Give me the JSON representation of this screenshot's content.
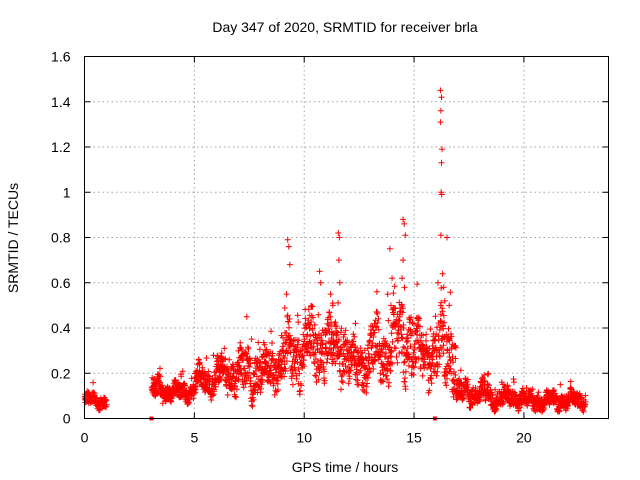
{
  "chart_data": {
    "type": "scatter",
    "title": "Day 347 of 2020, SRMTID for receiver brla",
    "xlabel": "GPS time / hours",
    "ylabel": "SRMTID / TECUs",
    "xlim": [
      0,
      23.85
    ],
    "ylim": [
      0,
      1.6
    ],
    "xticks": [
      0,
      5,
      10,
      15,
      20
    ],
    "yticks": [
      0,
      0.2,
      0.4,
      0.6,
      0.8,
      1,
      1.2,
      1.4,
      1.6
    ],
    "xtick_labels": [
      "0",
      "5",
      "10",
      "15",
      "20"
    ],
    "ytick_labels": [
      "0",
      "0.2",
      "0.4",
      "0.6",
      "0.8",
      "1",
      "1.2",
      "1.4",
      "1.6"
    ],
    "grid": true,
    "marker": "+",
    "color": "#ff0000",
    "zero_marks_x": [
      3.05,
      15.95
    ],
    "profile": [
      {
        "t_start": 0.0,
        "t_end": 1.0,
        "base": 0.08,
        "spread": 0.03
      },
      {
        "t_start": 3.05,
        "t_end": 3.6,
        "base": 0.13,
        "spread": 0.05
      },
      {
        "t_start": 3.6,
        "t_end": 5.0,
        "base": 0.12,
        "spread": 0.04
      },
      {
        "t_start": 5.0,
        "t_end": 6.0,
        "base": 0.17,
        "spread": 0.06
      },
      {
        "t_start": 6.0,
        "t_end": 7.0,
        "base": 0.2,
        "spread": 0.08
      },
      {
        "t_start": 7.0,
        "t_end": 8.2,
        "base": 0.2,
        "spread": 0.1
      },
      {
        "t_start": 8.2,
        "t_end": 9.0,
        "base": 0.22,
        "spread": 0.09
      },
      {
        "t_start": 9.0,
        "t_end": 10.0,
        "base": 0.28,
        "spread": 0.12
      },
      {
        "t_start": 10.0,
        "t_end": 11.0,
        "base": 0.33,
        "spread": 0.14
      },
      {
        "t_start": 11.0,
        "t_end": 12.0,
        "base": 0.3,
        "spread": 0.12
      },
      {
        "t_start": 12.0,
        "t_end": 13.0,
        "base": 0.24,
        "spread": 0.1
      },
      {
        "t_start": 13.0,
        "t_end": 14.0,
        "base": 0.3,
        "spread": 0.12
      },
      {
        "t_start": 14.0,
        "t_end": 15.0,
        "base": 0.35,
        "spread": 0.16
      },
      {
        "t_start": 15.0,
        "t_end": 16.0,
        "base": 0.28,
        "spread": 0.12
      },
      {
        "t_start": 16.0,
        "t_end": 16.9,
        "base": 0.3,
        "spread": 0.15
      },
      {
        "t_start": 16.9,
        "t_end": 18.5,
        "base": 0.11,
        "spread": 0.05
      },
      {
        "t_start": 18.5,
        "t_end": 20.0,
        "base": 0.09,
        "spread": 0.04
      },
      {
        "t_start": 20.0,
        "t_end": 22.8,
        "base": 0.08,
        "spread": 0.04
      }
    ],
    "spikes": [
      {
        "x": 9.25,
        "y": 0.79
      },
      {
        "x": 9.3,
        "y": 0.76
      },
      {
        "x": 9.35,
        "y": 0.68
      },
      {
        "x": 9.2,
        "y": 0.55
      },
      {
        "x": 10.7,
        "y": 0.65
      },
      {
        "x": 10.75,
        "y": 0.6
      },
      {
        "x": 11.2,
        "y": 0.55
      },
      {
        "x": 11.3,
        "y": 0.5
      },
      {
        "x": 11.55,
        "y": 0.82
      },
      {
        "x": 11.6,
        "y": 0.8
      },
      {
        "x": 11.58,
        "y": 0.7
      },
      {
        "x": 11.62,
        "y": 0.6
      },
      {
        "x": 13.9,
        "y": 0.75
      },
      {
        "x": 14.0,
        "y": 0.62
      },
      {
        "x": 13.8,
        "y": 0.55
      },
      {
        "x": 13.95,
        "y": 0.5
      },
      {
        "x": 14.5,
        "y": 0.88
      },
      {
        "x": 14.55,
        "y": 0.86
      },
      {
        "x": 14.6,
        "y": 0.81
      },
      {
        "x": 14.5,
        "y": 0.7
      },
      {
        "x": 14.45,
        "y": 0.62
      },
      {
        "x": 16.2,
        "y": 1.45
      },
      {
        "x": 16.25,
        "y": 1.42
      },
      {
        "x": 16.22,
        "y": 1.36
      },
      {
        "x": 16.2,
        "y": 1.31
      },
      {
        "x": 16.27,
        "y": 1.19
      },
      {
        "x": 16.25,
        "y": 1.13
      },
      {
        "x": 16.23,
        "y": 1.0
      },
      {
        "x": 16.26,
        "y": 0.99
      },
      {
        "x": 16.22,
        "y": 0.81
      },
      {
        "x": 16.5,
        "y": 0.8
      },
      {
        "x": 16.3,
        "y": 0.64
      },
      {
        "x": 16.35,
        "y": 0.58
      },
      {
        "x": 16.4,
        "y": 0.52
      },
      {
        "x": 16.6,
        "y": 0.5
      }
    ]
  }
}
